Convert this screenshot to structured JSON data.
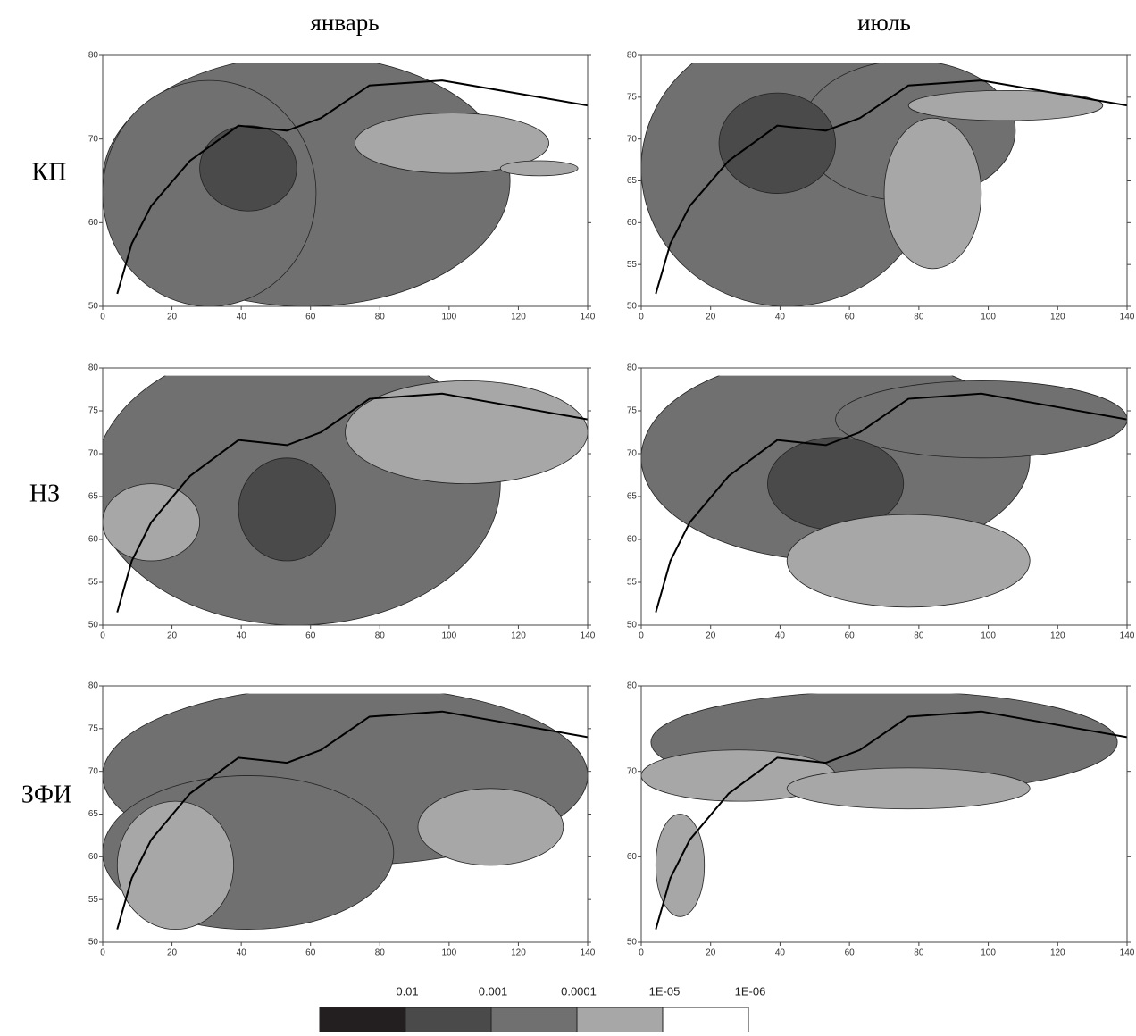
{
  "columns": [
    "январь",
    "июль"
  ],
  "rows": [
    "КП",
    "НЗ",
    "ЗФИ"
  ],
  "panels": [
    {
      "xlim": [
        0,
        140
      ],
      "ylim": [
        50,
        80
      ],
      "xticks": [
        0,
        20,
        40,
        60,
        80,
        100,
        120,
        140
      ],
      "yticks": [
        50,
        60,
        70,
        80
      ]
    },
    {
      "xlim": [
        0,
        140
      ],
      "ylim": [
        50,
        80
      ],
      "xticks": [
        0,
        20,
        40,
        60,
        80,
        100,
        120,
        140
      ],
      "yticks": [
        50,
        55,
        60,
        65,
        70,
        75,
        80
      ]
    },
    {
      "xlim": [
        0,
        140
      ],
      "ylim": [
        50,
        80
      ],
      "xticks": [
        0,
        20,
        40,
        60,
        80,
        100,
        120,
        140
      ],
      "yticks": [
        50,
        55,
        60,
        65,
        70,
        75,
        80
      ]
    },
    {
      "xlim": [
        0,
        140
      ],
      "ylim": [
        50,
        80
      ],
      "xticks": [
        0,
        20,
        40,
        60,
        80,
        100,
        120,
        140
      ],
      "yticks": [
        50,
        55,
        60,
        65,
        70,
        75,
        80
      ]
    },
    {
      "xlim": [
        0,
        140
      ],
      "ylim": [
        50,
        80
      ],
      "xticks": [
        0,
        20,
        40,
        60,
        80,
        100,
        120,
        140
      ],
      "yticks": [
        50,
        55,
        60,
        65,
        70,
        75,
        80
      ]
    },
    {
      "xlim": [
        0,
        140
      ],
      "ylim": [
        50,
        80
      ],
      "xticks": [
        0,
        20,
        40,
        60,
        80,
        100,
        120,
        140
      ],
      "yticks": [
        50,
        60,
        70,
        80
      ]
    }
  ],
  "legend": {
    "labels": [
      "0.01",
      "0.001",
      "0.0001",
      "1E-05",
      "1E-06"
    ],
    "colors": [
      "#231f20",
      "#4a4a4a",
      "#707070",
      "#a7a7a7",
      "#ffffff"
    ]
  }
}
